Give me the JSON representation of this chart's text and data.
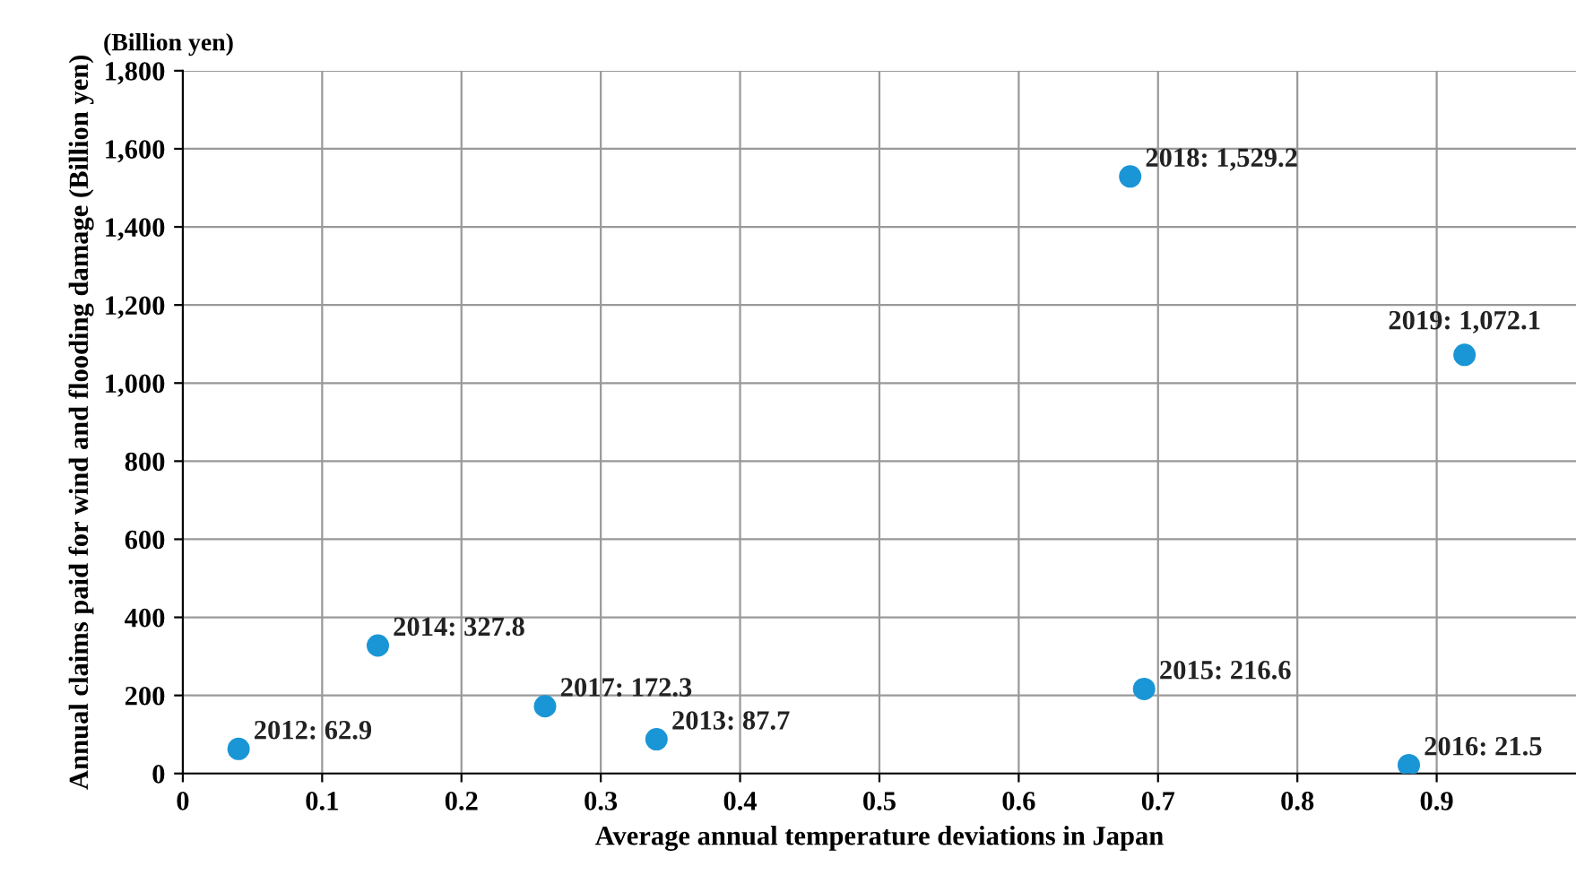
{
  "chart_data": {
    "type": "scatter",
    "xlabel": "Average annual temperature deviations in Japan",
    "ylabel": "Annual claims paid for wind and flooding damage (Billion yen)",
    "annotations": [
      "(Billion yen)"
    ],
    "x": [
      0.04,
      0.34,
      0.14,
      0.69,
      0.88,
      0.26,
      0.68,
      0.92
    ],
    "values": [
      62.9,
      87.7,
      327.8,
      216.6,
      21.5,
      172.3,
      1529.2,
      1072.1
    ],
    "value_labels": [
      "2012: 62.9",
      "2013: 87.7",
      "2014: 327.8",
      "2015: 216.6",
      "2016: 21.5",
      "2017: 172.3",
      "2018: 1,529.2",
      "2019: 1,072.1"
    ],
    "color": "#1a96d6",
    "marker": "circle",
    "xlim": [
      0,
      1
    ],
    "xticks": [
      0,
      0.1,
      0.2,
      0.3,
      0.4,
      0.5,
      0.6,
      0.7,
      0.8,
      0.9
    ],
    "ylim": [
      0,
      1800
    ],
    "yticks": [
      {
        "value": 0,
        "label": "0"
      },
      {
        "value": 200,
        "label": "200"
      },
      {
        "value": 400,
        "label": "400"
      },
      {
        "value": 600,
        "label": "600"
      },
      {
        "value": 800,
        "label": "800"
      },
      {
        "value": 1000,
        "label": "1,000"
      },
      {
        "value": 1200,
        "label": "1,200"
      },
      {
        "value": 1400,
        "label": "1,400"
      },
      {
        "value": 1600,
        "label": "1,600"
      },
      {
        "value": 1800,
        "label": "1,800"
      }
    ],
    "grid": true
  }
}
